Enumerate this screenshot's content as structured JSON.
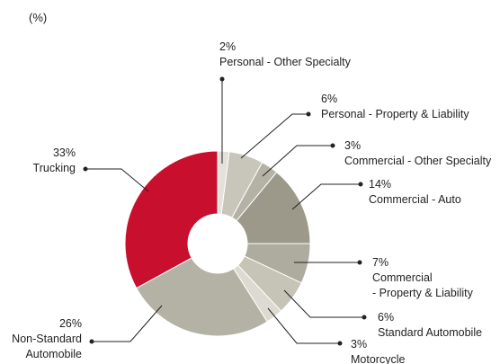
{
  "chart_data": {
    "type": "pie",
    "title": "(%)",
    "categories": [
      "Personal - Other Specialty",
      "Personal - Property & Liability",
      "Commercial - Other Specialty",
      "Commercial - Auto",
      "Commercial\n- Property & Liability",
      "Standard Automobile",
      "Motorcycle",
      "Non-Standard\nAutomobile",
      "Trucking"
    ],
    "values": [
      2,
      6,
      3,
      14,
      7,
      6,
      3,
      26,
      33
    ],
    "value_labels": [
      "2%",
      "6%",
      "3%",
      "14%",
      "7%",
      "6%",
      "3%",
      "26%",
      "33%"
    ],
    "colors": [
      "#e4e1da",
      "#c8c6ba",
      "#b4b2a5",
      "#9c998a",
      "#aeac9e",
      "#c6c4b7",
      "#dddbd1",
      "#b3b2a4",
      "#c8102e"
    ]
  }
}
